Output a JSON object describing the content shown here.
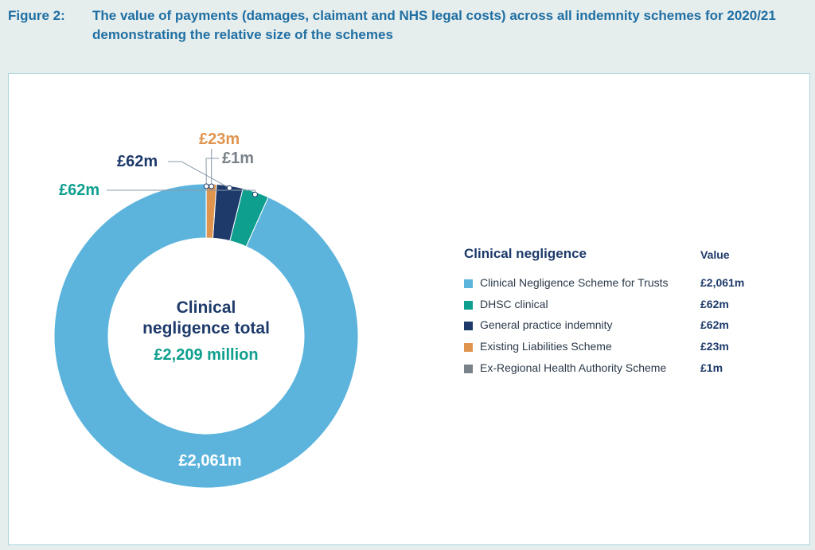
{
  "figure": {
    "label": "Figure 2:",
    "title": "The value of payments (damages, claimant and NHS legal costs) across all indemnity schemes for 2020/21 demonstrating the relative size of the schemes"
  },
  "chart_data": {
    "type": "pie",
    "variant": "donut",
    "center_label": {
      "line1": "Clinical",
      "line2": "negligence total",
      "value": "£2,209 million"
    },
    "slices": [
      {
        "name": "Clinical Negligence Scheme for Trusts",
        "value": 2061,
        "label": "£2,061m",
        "color": "#5cb4dd"
      },
      {
        "name": "DHSC clinical",
        "value": 62,
        "label": "£62m",
        "color": "#0f9f8f"
      },
      {
        "name": "General practice indemnity",
        "value": 62,
        "label": "£62m",
        "color": "#1e3a6a"
      },
      {
        "name": "Existing Liabilities Scheme",
        "value": 23,
        "label": "£23m",
        "color": "#e0954f"
      },
      {
        "name": "Ex-Regional Health Authority Scheme",
        "value": 1,
        "label": "£1m",
        "color": "#7a8289"
      }
    ],
    "legend": {
      "title": "Clinical negligence",
      "value_header": "Value",
      "placement": "right"
    }
  }
}
